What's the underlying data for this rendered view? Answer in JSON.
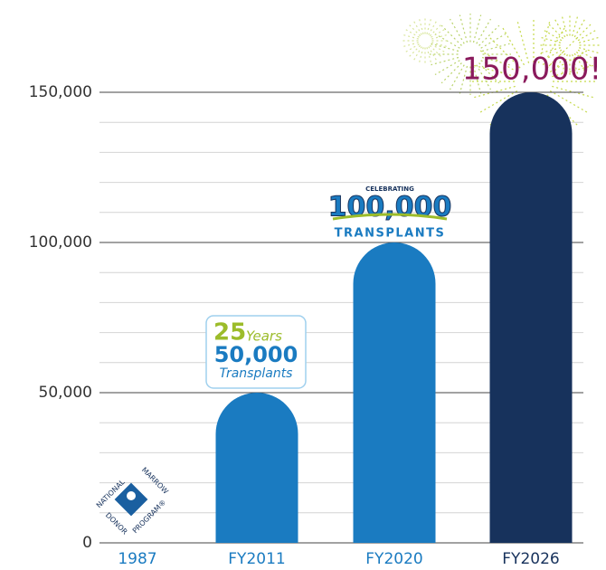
{
  "chart_data": {
    "type": "bar",
    "categories": [
      "1987",
      "FY2011",
      "FY2020",
      "FY2026"
    ],
    "values": [
      0,
      50000,
      100000,
      150000
    ],
    "colors": [
      "#1a7bc1",
      "#1a7bc1",
      "#1a7bc1",
      "#17325c"
    ],
    "ylim": [
      0,
      150000
    ],
    "yticks": [
      {
        "value": 0,
        "label": "0"
      },
      {
        "value": 50000,
        "label": "50,000"
      },
      {
        "value": 100000,
        "label": "100,000"
      },
      {
        "value": 150000,
        "label": "150,000"
      }
    ],
    "minor_yticks": [
      10000,
      20000,
      30000,
      40000,
      60000,
      70000,
      80000,
      90000,
      110000,
      120000,
      130000,
      140000
    ],
    "grid": true,
    "annotations": {
      "logo": [
        "NATIONAL",
        "MARROW",
        "DONOR",
        "PROGRAM®"
      ],
      "badge_25": {
        "number": "25",
        "word": "Years",
        "count": "50,000",
        "caption": "Transplants"
      },
      "badge_100": {
        "top": "CELEBRATING",
        "count": "100,000",
        "caption": "TRANSPLANTS"
      },
      "highlight": "150,000!"
    }
  }
}
